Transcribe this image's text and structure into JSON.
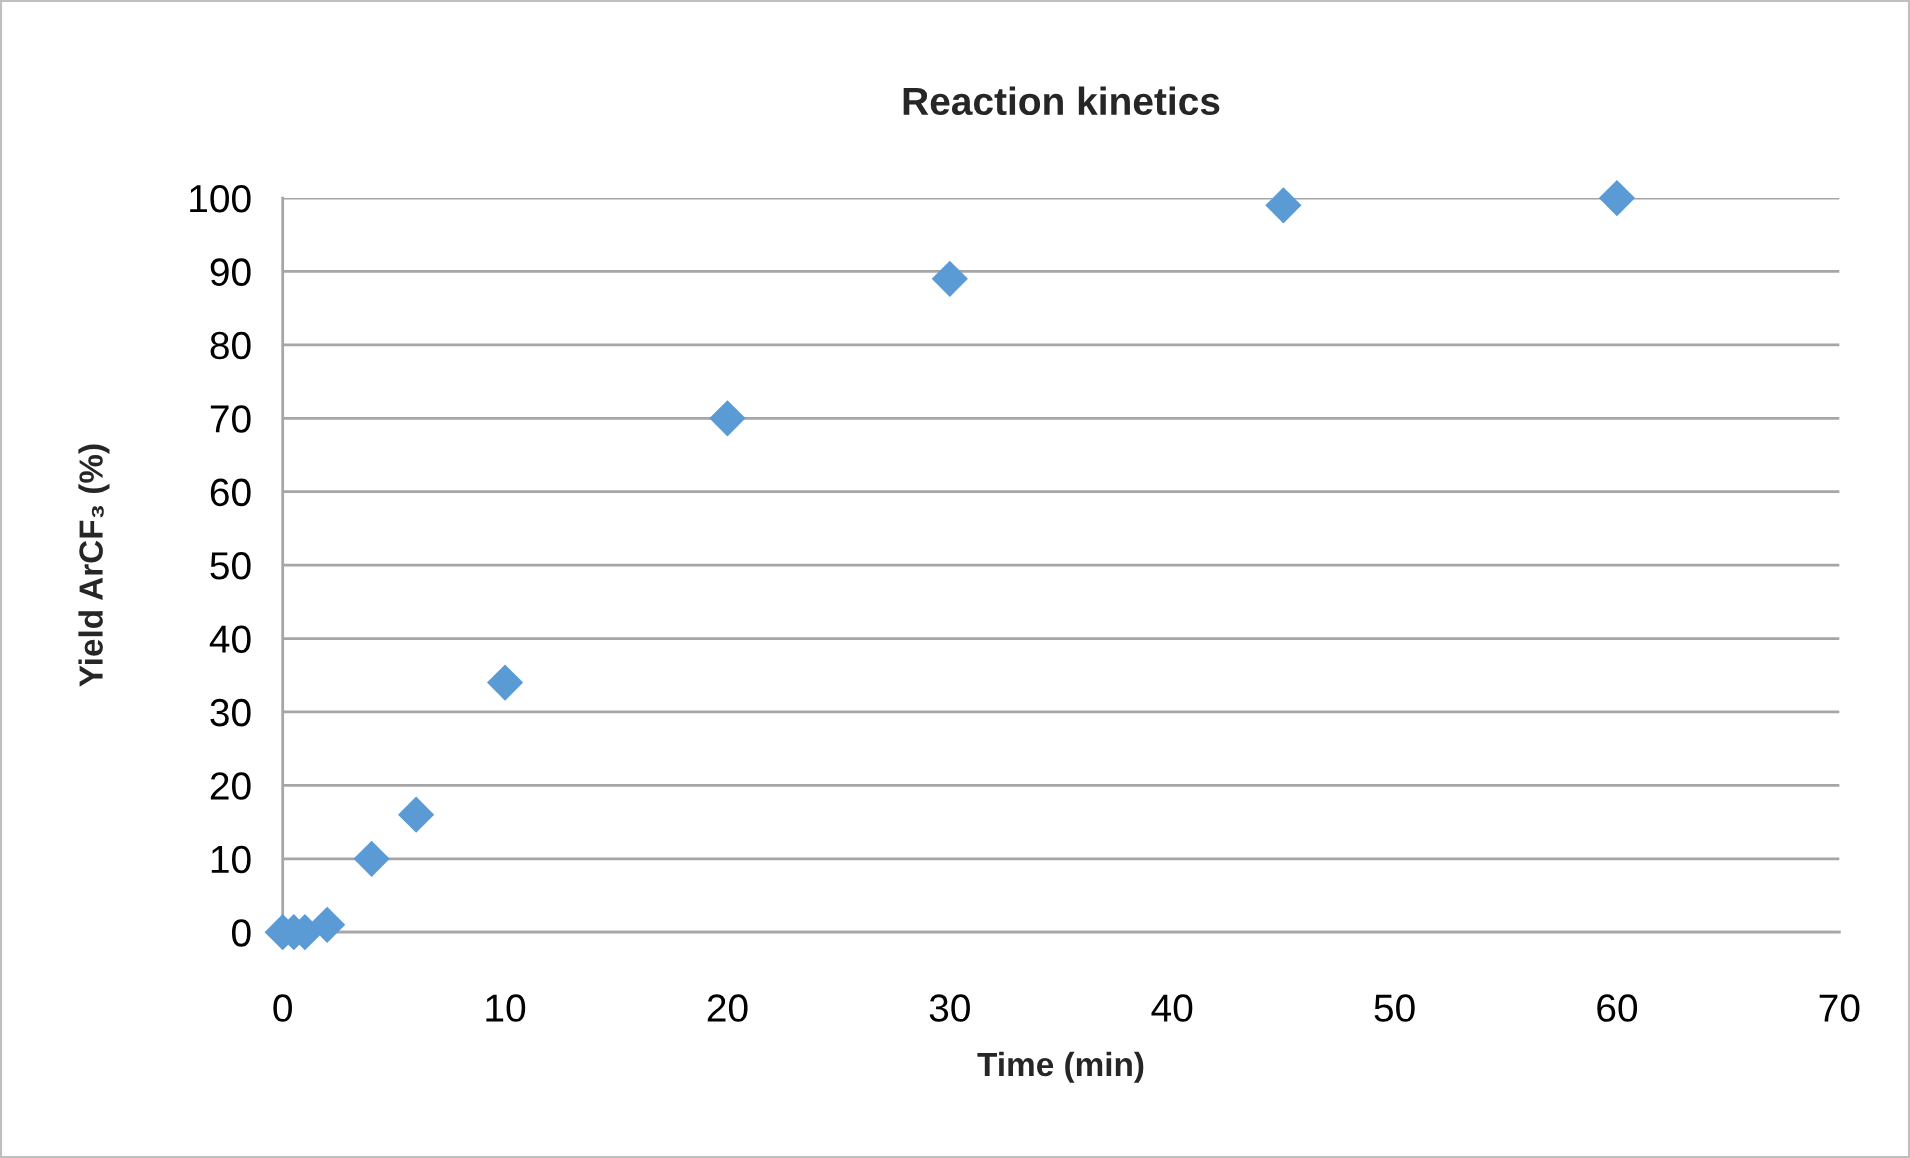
{
  "chart_data": {
    "type": "scatter",
    "title": "Reaction kinetics",
    "xlabel": "Time (min)",
    "ylabel": "Yield ArCF₃ (%)",
    "x": [
      0,
      0.5,
      1,
      2,
      4,
      6,
      10,
      20,
      30,
      45,
      60
    ],
    "series": [
      {
        "color": "#5b9bd5",
        "values": [
          0,
          0,
          0,
          1,
          10,
          16,
          34,
          70,
          89,
          99,
          100
        ]
      }
    ],
    "xlim": [
      0,
      70
    ],
    "xticks": [
      0,
      10,
      20,
      30,
      40,
      50,
      60,
      70
    ],
    "ylim": [
      0,
      100
    ],
    "yticks": [
      0,
      10,
      20,
      30,
      40,
      50,
      60,
      70,
      80,
      90,
      100
    ],
    "grid": "y",
    "marker": "diamond"
  }
}
